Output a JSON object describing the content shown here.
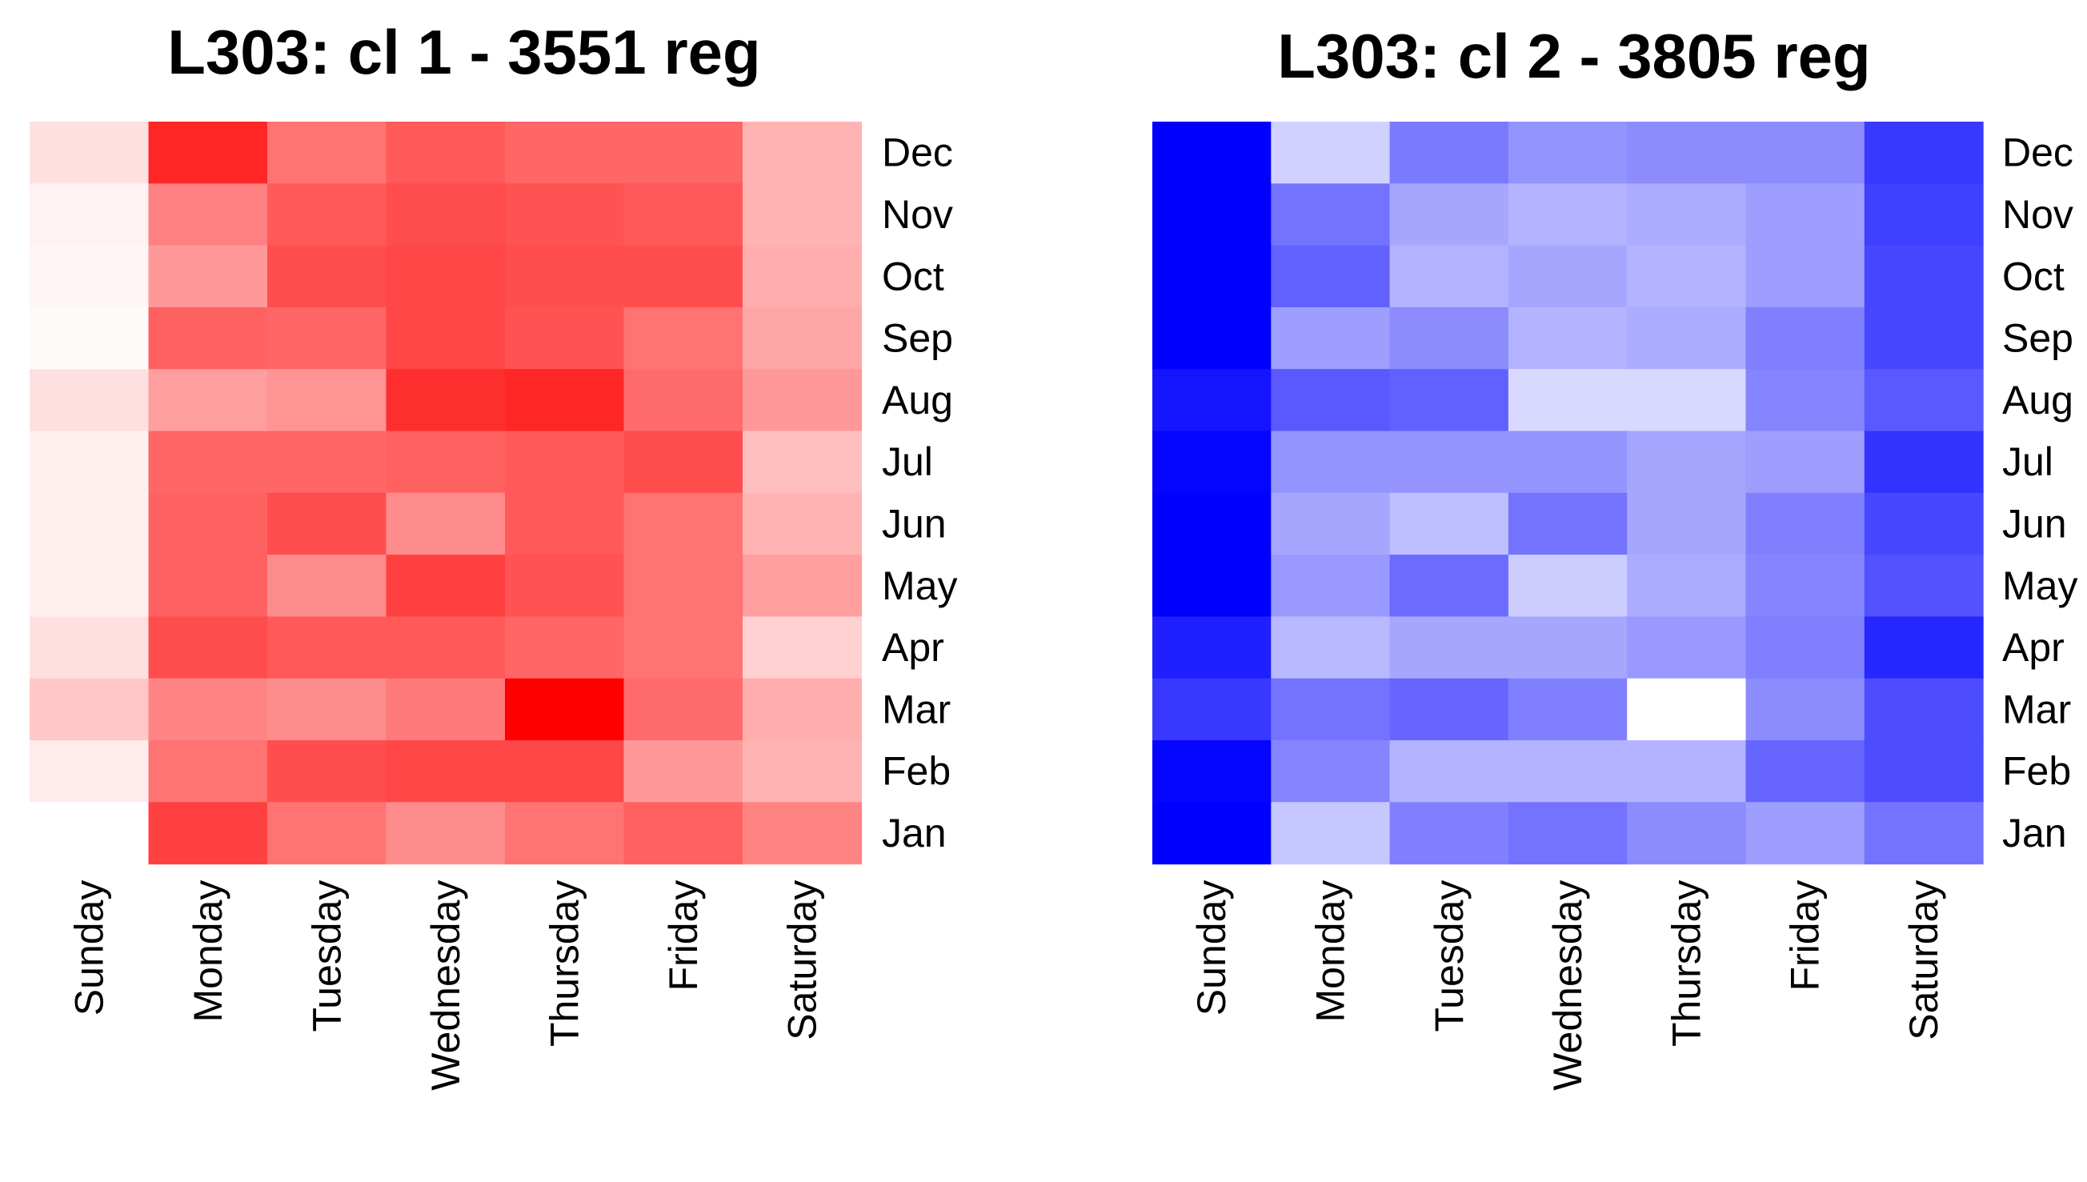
{
  "chart_data": [
    {
      "type": "heatmap",
      "title": "L303:  cl 1 - 3551 reg",
      "color_low": "#ffffff",
      "color_high": "#ff0000",
      "x_categories": [
        "Sunday",
        "Monday",
        "Tuesday",
        "Wednesday",
        "Thursday",
        "Friday",
        "Saturday"
      ],
      "y_categories": [
        "Dec",
        "Nov",
        "Oct",
        "Sep",
        "Aug",
        "Jul",
        "Jun",
        "May",
        "Apr",
        "Mar",
        "Feb",
        "Jan"
      ],
      "values": [
        [
          0.12,
          0.85,
          0.55,
          0.65,
          0.6,
          0.6,
          0.3
        ],
        [
          0.05,
          0.5,
          0.65,
          0.7,
          0.68,
          0.65,
          0.3
        ],
        [
          0.04,
          0.4,
          0.7,
          0.72,
          0.7,
          0.7,
          0.32
        ],
        [
          0.02,
          0.62,
          0.6,
          0.72,
          0.68,
          0.55,
          0.35
        ],
        [
          0.12,
          0.38,
          0.42,
          0.82,
          0.85,
          0.58,
          0.4
        ],
        [
          0.06,
          0.6,
          0.6,
          0.62,
          0.65,
          0.7,
          0.25
        ],
        [
          0.06,
          0.62,
          0.7,
          0.45,
          0.65,
          0.55,
          0.3
        ],
        [
          0.06,
          0.62,
          0.45,
          0.75,
          0.68,
          0.55,
          0.38
        ],
        [
          0.12,
          0.7,
          0.65,
          0.65,
          0.6,
          0.55,
          0.18
        ],
        [
          0.22,
          0.48,
          0.45,
          0.52,
          1.0,
          0.58,
          0.32
        ],
        [
          0.08,
          0.55,
          0.7,
          0.72,
          0.72,
          0.4,
          0.3
        ],
        [
          0.0,
          0.75,
          0.55,
          0.45,
          0.55,
          0.62,
          0.48
        ]
      ]
    },
    {
      "type": "heatmap",
      "title": "L303:  cl 2 - 3805 reg",
      "color_low": "#ffffff",
      "color_high": "#0000ff",
      "x_categories": [
        "Sunday",
        "Monday",
        "Tuesday",
        "Wednesday",
        "Thursday",
        "Friday",
        "Saturday"
      ],
      "y_categories": [
        "Dec",
        "Nov",
        "Oct",
        "Sep",
        "Aug",
        "Jul",
        "Jun",
        "May",
        "Apr",
        "Mar",
        "Feb",
        "Jan"
      ],
      "values": [
        [
          1.0,
          0.18,
          0.52,
          0.42,
          0.45,
          0.45,
          0.78
        ],
        [
          1.0,
          0.55,
          0.35,
          0.3,
          0.33,
          0.38,
          0.75
        ],
        [
          1.0,
          0.62,
          0.3,
          0.35,
          0.3,
          0.38,
          0.72
        ],
        [
          1.0,
          0.38,
          0.45,
          0.3,
          0.33,
          0.5,
          0.72
        ],
        [
          0.92,
          0.65,
          0.62,
          0.15,
          0.15,
          0.48,
          0.65
        ],
        [
          0.98,
          0.42,
          0.42,
          0.42,
          0.35,
          0.38,
          0.8
        ],
        [
          1.0,
          0.35,
          0.25,
          0.55,
          0.35,
          0.5,
          0.72
        ],
        [
          1.0,
          0.4,
          0.58,
          0.2,
          0.33,
          0.48,
          0.68
        ],
        [
          0.88,
          0.28,
          0.35,
          0.35,
          0.4,
          0.5,
          0.85
        ],
        [
          0.78,
          0.55,
          0.6,
          0.5,
          0.0,
          0.45,
          0.7
        ],
        [
          0.98,
          0.48,
          0.3,
          0.3,
          0.3,
          0.6,
          0.7
        ],
        [
          1.0,
          0.22,
          0.5,
          0.55,
          0.45,
          0.38,
          0.55
        ]
      ]
    }
  ]
}
